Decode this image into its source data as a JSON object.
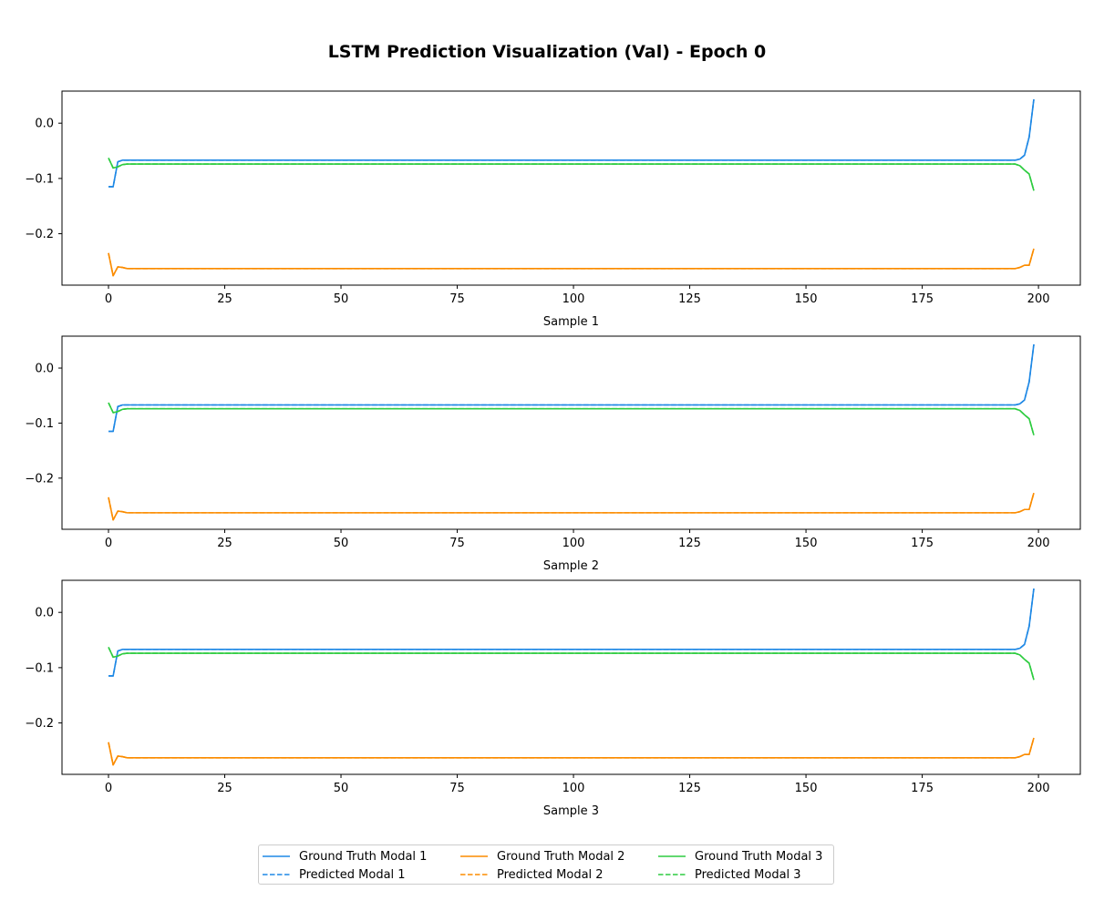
{
  "title": "LSTM Prediction Visualization (Val) - Epoch 0",
  "colors": {
    "modal_1": "#1e88e5",
    "modal_2": "#fb8c00",
    "modal_3": "#2ecc40"
  },
  "legend": {
    "location": "bottom-center",
    "columns": 3,
    "entries": [
      {
        "label": "Ground Truth Modal 1",
        "style": "solid",
        "color_key": "modal_1"
      },
      {
        "label": "Predicted Modal 1",
        "style": "dashed",
        "color_key": "modal_1"
      },
      {
        "label": "Ground Truth Modal 2",
        "style": "solid",
        "color_key": "modal_2"
      },
      {
        "label": "Predicted Modal 2",
        "style": "dashed",
        "color_key": "modal_2"
      },
      {
        "label": "Ground Truth Modal 3",
        "style": "solid",
        "color_key": "modal_3"
      },
      {
        "label": "Predicted Modal 3",
        "style": "dashed",
        "color_key": "modal_3"
      }
    ]
  },
  "chart_data": [
    {
      "type": "line",
      "xlabel": "Sample 1",
      "ylabel": "",
      "xlim": [
        -10,
        209
      ],
      "ylim": [
        -0.293,
        0.058
      ],
      "xticks": [
        0,
        25,
        50,
        75,
        100,
        125,
        150,
        175,
        200
      ],
      "yticks": [
        -0.2,
        -0.1,
        0.0
      ],
      "ytick_labels": [
        "−0.2",
        "−0.1",
        "0.0"
      ],
      "grid": false,
      "x_range": [
        0,
        199
      ],
      "series": [
        {
          "name": "Ground Truth Modal 1",
          "style": "solid",
          "color_key": "modal_1",
          "plateau": -0.067,
          "points": [
            [
              0,
              -0.115
            ],
            [
              1,
              -0.115
            ],
            [
              2,
              -0.07
            ],
            [
              3,
              -0.067
            ],
            [
              195,
              -0.067
            ],
            [
              196,
              -0.065
            ],
            [
              197,
              -0.058
            ],
            [
              198,
              -0.025
            ],
            [
              199,
              0.043
            ]
          ]
        },
        {
          "name": "Predicted Modal 1",
          "style": "dashed",
          "color_key": "modal_1",
          "plateau": -0.067,
          "points": [
            [
              0,
              -0.115
            ],
            [
              1,
              -0.115
            ],
            [
              2,
              -0.07
            ],
            [
              3,
              -0.067
            ],
            [
              195,
              -0.067
            ],
            [
              196,
              -0.065
            ],
            [
              197,
              -0.058
            ],
            [
              198,
              -0.025
            ],
            [
              199,
              0.043
            ]
          ]
        },
        {
          "name": "Ground Truth Modal 2",
          "style": "solid",
          "color_key": "modal_2",
          "plateau": -0.263,
          "points": [
            [
              0,
              -0.235
            ],
            [
              1,
              -0.276
            ],
            [
              2,
              -0.26
            ],
            [
              3,
              -0.261
            ],
            [
              4,
              -0.263
            ],
            [
              195,
              -0.263
            ],
            [
              196,
              -0.261
            ],
            [
              197,
              -0.257
            ],
            [
              198,
              -0.257
            ],
            [
              199,
              -0.227
            ]
          ]
        },
        {
          "name": "Predicted Modal 2",
          "style": "dashed",
          "color_key": "modal_2",
          "plateau": -0.263,
          "points": [
            [
              0,
              -0.235
            ],
            [
              1,
              -0.276
            ],
            [
              2,
              -0.26
            ],
            [
              3,
              -0.261
            ],
            [
              4,
              -0.263
            ],
            [
              195,
              -0.263
            ],
            [
              196,
              -0.261
            ],
            [
              197,
              -0.257
            ],
            [
              198,
              -0.257
            ],
            [
              199,
              -0.227
            ]
          ]
        },
        {
          "name": "Ground Truth Modal 3",
          "style": "solid",
          "color_key": "modal_3",
          "plateau": -0.074,
          "points": [
            [
              0,
              -0.063
            ],
            [
              1,
              -0.081
            ],
            [
              2,
              -0.079
            ],
            [
              3,
              -0.075
            ],
            [
              4,
              -0.074
            ],
            [
              195,
              -0.074
            ],
            [
              196,
              -0.077
            ],
            [
              197,
              -0.085
            ],
            [
              198,
              -0.092
            ],
            [
              199,
              -0.122
            ]
          ]
        },
        {
          "name": "Predicted Modal 3",
          "style": "dashed",
          "color_key": "modal_3",
          "plateau": -0.074,
          "points": [
            [
              0,
              -0.063
            ],
            [
              1,
              -0.081
            ],
            [
              2,
              -0.079
            ],
            [
              3,
              -0.075
            ],
            [
              4,
              -0.074
            ],
            [
              195,
              -0.074
            ],
            [
              196,
              -0.077
            ],
            [
              197,
              -0.085
            ],
            [
              198,
              -0.092
            ],
            [
              199,
              -0.122
            ]
          ]
        }
      ]
    },
    {
      "type": "line",
      "xlabel": "Sample 2",
      "ylabel": "",
      "xlim": [
        -10,
        209
      ],
      "ylim": [
        -0.293,
        0.058
      ],
      "xticks": [
        0,
        25,
        50,
        75,
        100,
        125,
        150,
        175,
        200
      ],
      "yticks": [
        -0.2,
        -0.1,
        0.0
      ],
      "ytick_labels": [
        "−0.2",
        "−0.1",
        "0.0"
      ],
      "grid": false,
      "x_range": [
        0,
        199
      ],
      "series": [
        {
          "name": "Ground Truth Modal 1",
          "style": "solid",
          "color_key": "modal_1",
          "plateau": -0.067,
          "points": [
            [
              0,
              -0.115
            ],
            [
              1,
              -0.115
            ],
            [
              2,
              -0.07
            ],
            [
              3,
              -0.067
            ],
            [
              195,
              -0.067
            ],
            [
              196,
              -0.065
            ],
            [
              197,
              -0.058
            ],
            [
              198,
              -0.025
            ],
            [
              199,
              0.043
            ]
          ]
        },
        {
          "name": "Predicted Modal 1",
          "style": "dashed",
          "color_key": "modal_1",
          "plateau": -0.067,
          "points": [
            [
              0,
              -0.115
            ],
            [
              1,
              -0.115
            ],
            [
              2,
              -0.07
            ],
            [
              3,
              -0.067
            ],
            [
              195,
              -0.067
            ],
            [
              196,
              -0.065
            ],
            [
              197,
              -0.058
            ],
            [
              198,
              -0.025
            ],
            [
              199,
              0.043
            ]
          ]
        },
        {
          "name": "Ground Truth Modal 2",
          "style": "solid",
          "color_key": "modal_2",
          "plateau": -0.263,
          "points": [
            [
              0,
              -0.235
            ],
            [
              1,
              -0.276
            ],
            [
              2,
              -0.26
            ],
            [
              3,
              -0.261
            ],
            [
              4,
              -0.263
            ],
            [
              195,
              -0.263
            ],
            [
              196,
              -0.261
            ],
            [
              197,
              -0.257
            ],
            [
              198,
              -0.257
            ],
            [
              199,
              -0.227
            ]
          ]
        },
        {
          "name": "Predicted Modal 2",
          "style": "dashed",
          "color_key": "modal_2",
          "plateau": -0.263,
          "points": [
            [
              0,
              -0.235
            ],
            [
              1,
              -0.276
            ],
            [
              2,
              -0.26
            ],
            [
              3,
              -0.261
            ],
            [
              4,
              -0.263
            ],
            [
              195,
              -0.263
            ],
            [
              196,
              -0.261
            ],
            [
              197,
              -0.257
            ],
            [
              198,
              -0.257
            ],
            [
              199,
              -0.227
            ]
          ]
        },
        {
          "name": "Ground Truth Modal 3",
          "style": "solid",
          "color_key": "modal_3",
          "plateau": -0.074,
          "points": [
            [
              0,
              -0.063
            ],
            [
              1,
              -0.081
            ],
            [
              2,
              -0.079
            ],
            [
              3,
              -0.075
            ],
            [
              4,
              -0.074
            ],
            [
              195,
              -0.074
            ],
            [
              196,
              -0.077
            ],
            [
              197,
              -0.085
            ],
            [
              198,
              -0.092
            ],
            [
              199,
              -0.122
            ]
          ]
        },
        {
          "name": "Predicted Modal 3",
          "style": "dashed",
          "color_key": "modal_3",
          "plateau": -0.074,
          "points": [
            [
              0,
              -0.063
            ],
            [
              1,
              -0.081
            ],
            [
              2,
              -0.079
            ],
            [
              3,
              -0.075
            ],
            [
              4,
              -0.074
            ],
            [
              195,
              -0.074
            ],
            [
              196,
              -0.077
            ],
            [
              197,
              -0.085
            ],
            [
              198,
              -0.092
            ],
            [
              199,
              -0.122
            ]
          ]
        }
      ]
    },
    {
      "type": "line",
      "xlabel": "Sample 3",
      "ylabel": "",
      "xlim": [
        -10,
        209
      ],
      "ylim": [
        -0.293,
        0.058
      ],
      "xticks": [
        0,
        25,
        50,
        75,
        100,
        125,
        150,
        175,
        200
      ],
      "yticks": [
        -0.2,
        -0.1,
        0.0
      ],
      "ytick_labels": [
        "−0.2",
        "−0.1",
        "0.0"
      ],
      "grid": false,
      "x_range": [
        0,
        199
      ],
      "series": [
        {
          "name": "Ground Truth Modal 1",
          "style": "solid",
          "color_key": "modal_1",
          "plateau": -0.067,
          "points": [
            [
              0,
              -0.115
            ],
            [
              1,
              -0.115
            ],
            [
              2,
              -0.07
            ],
            [
              3,
              -0.067
            ],
            [
              195,
              -0.067
            ],
            [
              196,
              -0.065
            ],
            [
              197,
              -0.058
            ],
            [
              198,
              -0.025
            ],
            [
              199,
              0.043
            ]
          ]
        },
        {
          "name": "Predicted Modal 1",
          "style": "dashed",
          "color_key": "modal_1",
          "plateau": -0.067,
          "points": [
            [
              0,
              -0.115
            ],
            [
              1,
              -0.115
            ],
            [
              2,
              -0.07
            ],
            [
              3,
              -0.067
            ],
            [
              195,
              -0.067
            ],
            [
              196,
              -0.065
            ],
            [
              197,
              -0.058
            ],
            [
              198,
              -0.025
            ],
            [
              199,
              0.043
            ]
          ]
        },
        {
          "name": "Ground Truth Modal 2",
          "style": "solid",
          "color_key": "modal_2",
          "plateau": -0.263,
          "points": [
            [
              0,
              -0.235
            ],
            [
              1,
              -0.276
            ],
            [
              2,
              -0.26
            ],
            [
              3,
              -0.261
            ],
            [
              4,
              -0.263
            ],
            [
              195,
              -0.263
            ],
            [
              196,
              -0.261
            ],
            [
              197,
              -0.257
            ],
            [
              198,
              -0.257
            ],
            [
              199,
              -0.227
            ]
          ]
        },
        {
          "name": "Predicted Modal 2",
          "style": "dashed",
          "color_key": "modal_2",
          "plateau": -0.263,
          "points": [
            [
              0,
              -0.235
            ],
            [
              1,
              -0.276
            ],
            [
              2,
              -0.26
            ],
            [
              3,
              -0.261
            ],
            [
              4,
              -0.263
            ],
            [
              195,
              -0.263
            ],
            [
              196,
              -0.261
            ],
            [
              197,
              -0.257
            ],
            [
              198,
              -0.257
            ],
            [
              199,
              -0.227
            ]
          ]
        },
        {
          "name": "Ground Truth Modal 3",
          "style": "solid",
          "color_key": "modal_3",
          "plateau": -0.074,
          "points": [
            [
              0,
              -0.063
            ],
            [
              1,
              -0.081
            ],
            [
              2,
              -0.079
            ],
            [
              3,
              -0.075
            ],
            [
              4,
              -0.074
            ],
            [
              195,
              -0.074
            ],
            [
              196,
              -0.077
            ],
            [
              197,
              -0.085
            ],
            [
              198,
              -0.092
            ],
            [
              199,
              -0.122
            ]
          ]
        },
        {
          "name": "Predicted Modal 3",
          "style": "dashed",
          "color_key": "modal_3",
          "plateau": -0.074,
          "points": [
            [
              0,
              -0.063
            ],
            [
              1,
              -0.081
            ],
            [
              2,
              -0.079
            ],
            [
              3,
              -0.075
            ],
            [
              4,
              -0.074
            ],
            [
              195,
              -0.074
            ],
            [
              196,
              -0.077
            ],
            [
              197,
              -0.085
            ],
            [
              198,
              -0.092
            ],
            [
              199,
              -0.122
            ]
          ]
        }
      ]
    }
  ]
}
